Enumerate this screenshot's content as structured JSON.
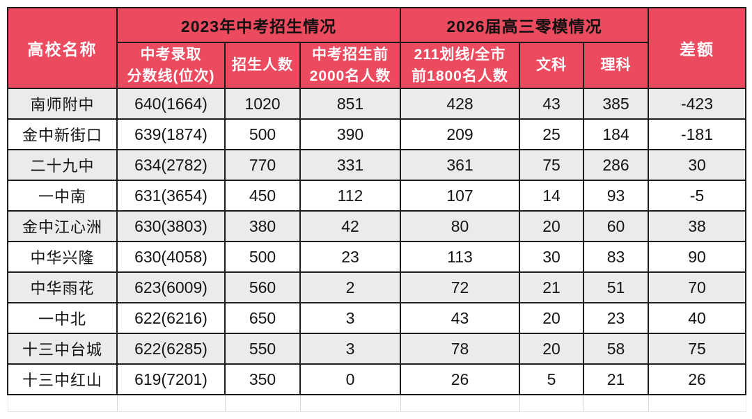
{
  "table": {
    "header": {
      "school": "高校名称",
      "group_2023": "2023年中考招生情况",
      "group_2026": "2026届高三零模情况",
      "diff": "差额",
      "sub_score": "中考录取\n分数线(位次)",
      "sub_enroll": "招生人数",
      "sub_top2000": "中考招生前\n2000名人数",
      "sub_line211": "211划线/全市\n前1800名人数",
      "sub_liberal": "文科",
      "sub_science": "理科"
    },
    "rows": [
      {
        "school": "南师附中",
        "score": "640(1664)",
        "enroll": "1020",
        "top2000": "851",
        "line211": "428",
        "liberal": "43",
        "science": "385",
        "diff": "-423"
      },
      {
        "school": "金中新街口",
        "score": "639(1874)",
        "enroll": "500",
        "top2000": "390",
        "line211": "209",
        "liberal": "25",
        "science": "184",
        "diff": "-181"
      },
      {
        "school": "二十九中",
        "score": "634(2782)",
        "enroll": "770",
        "top2000": "331",
        "line211": "361",
        "liberal": "75",
        "science": "286",
        "diff": "30"
      },
      {
        "school": "一中南",
        "score": "631(3654)",
        "enroll": "450",
        "top2000": "112",
        "line211": "107",
        "liberal": "14",
        "science": "93",
        "diff": "-5"
      },
      {
        "school": "金中江心洲",
        "score": "630(3803)",
        "enroll": "380",
        "top2000": "42",
        "line211": "80",
        "liberal": "20",
        "science": "60",
        "diff": "38"
      },
      {
        "school": "中华兴隆",
        "score": "630(4058)",
        "enroll": "500",
        "top2000": "23",
        "line211": "113",
        "liberal": "30",
        "science": "83",
        "diff": "90"
      },
      {
        "school": "中华雨花",
        "score": "623(6009)",
        "enroll": "560",
        "top2000": "2",
        "line211": "72",
        "liberal": "21",
        "science": "51",
        "diff": "70"
      },
      {
        "school": "一中北",
        "score": "622(6216)",
        "enroll": "650",
        "top2000": "3",
        "line211": "43",
        "liberal": "20",
        "science": "23",
        "diff": "40"
      },
      {
        "school": "十三中台城",
        "score": "622(6285)",
        "enroll": "550",
        "top2000": "3",
        "line211": "78",
        "liberal": "20",
        "science": "58",
        "diff": "75"
      },
      {
        "school": "十三中红山",
        "score": "619(7201)",
        "enroll": "350",
        "top2000": "0",
        "line211": "26",
        "liberal": "5",
        "science": "21",
        "diff": "26"
      }
    ]
  },
  "colors": {
    "header_bg": "#ec4b5f",
    "header_text_white": "#ffffff",
    "group_header_text": "#111111",
    "alt_row_bg": "#ebebeb",
    "row_bg": "#ffffff",
    "border": "#1d1d1d",
    "data_text": "#141414"
  }
}
